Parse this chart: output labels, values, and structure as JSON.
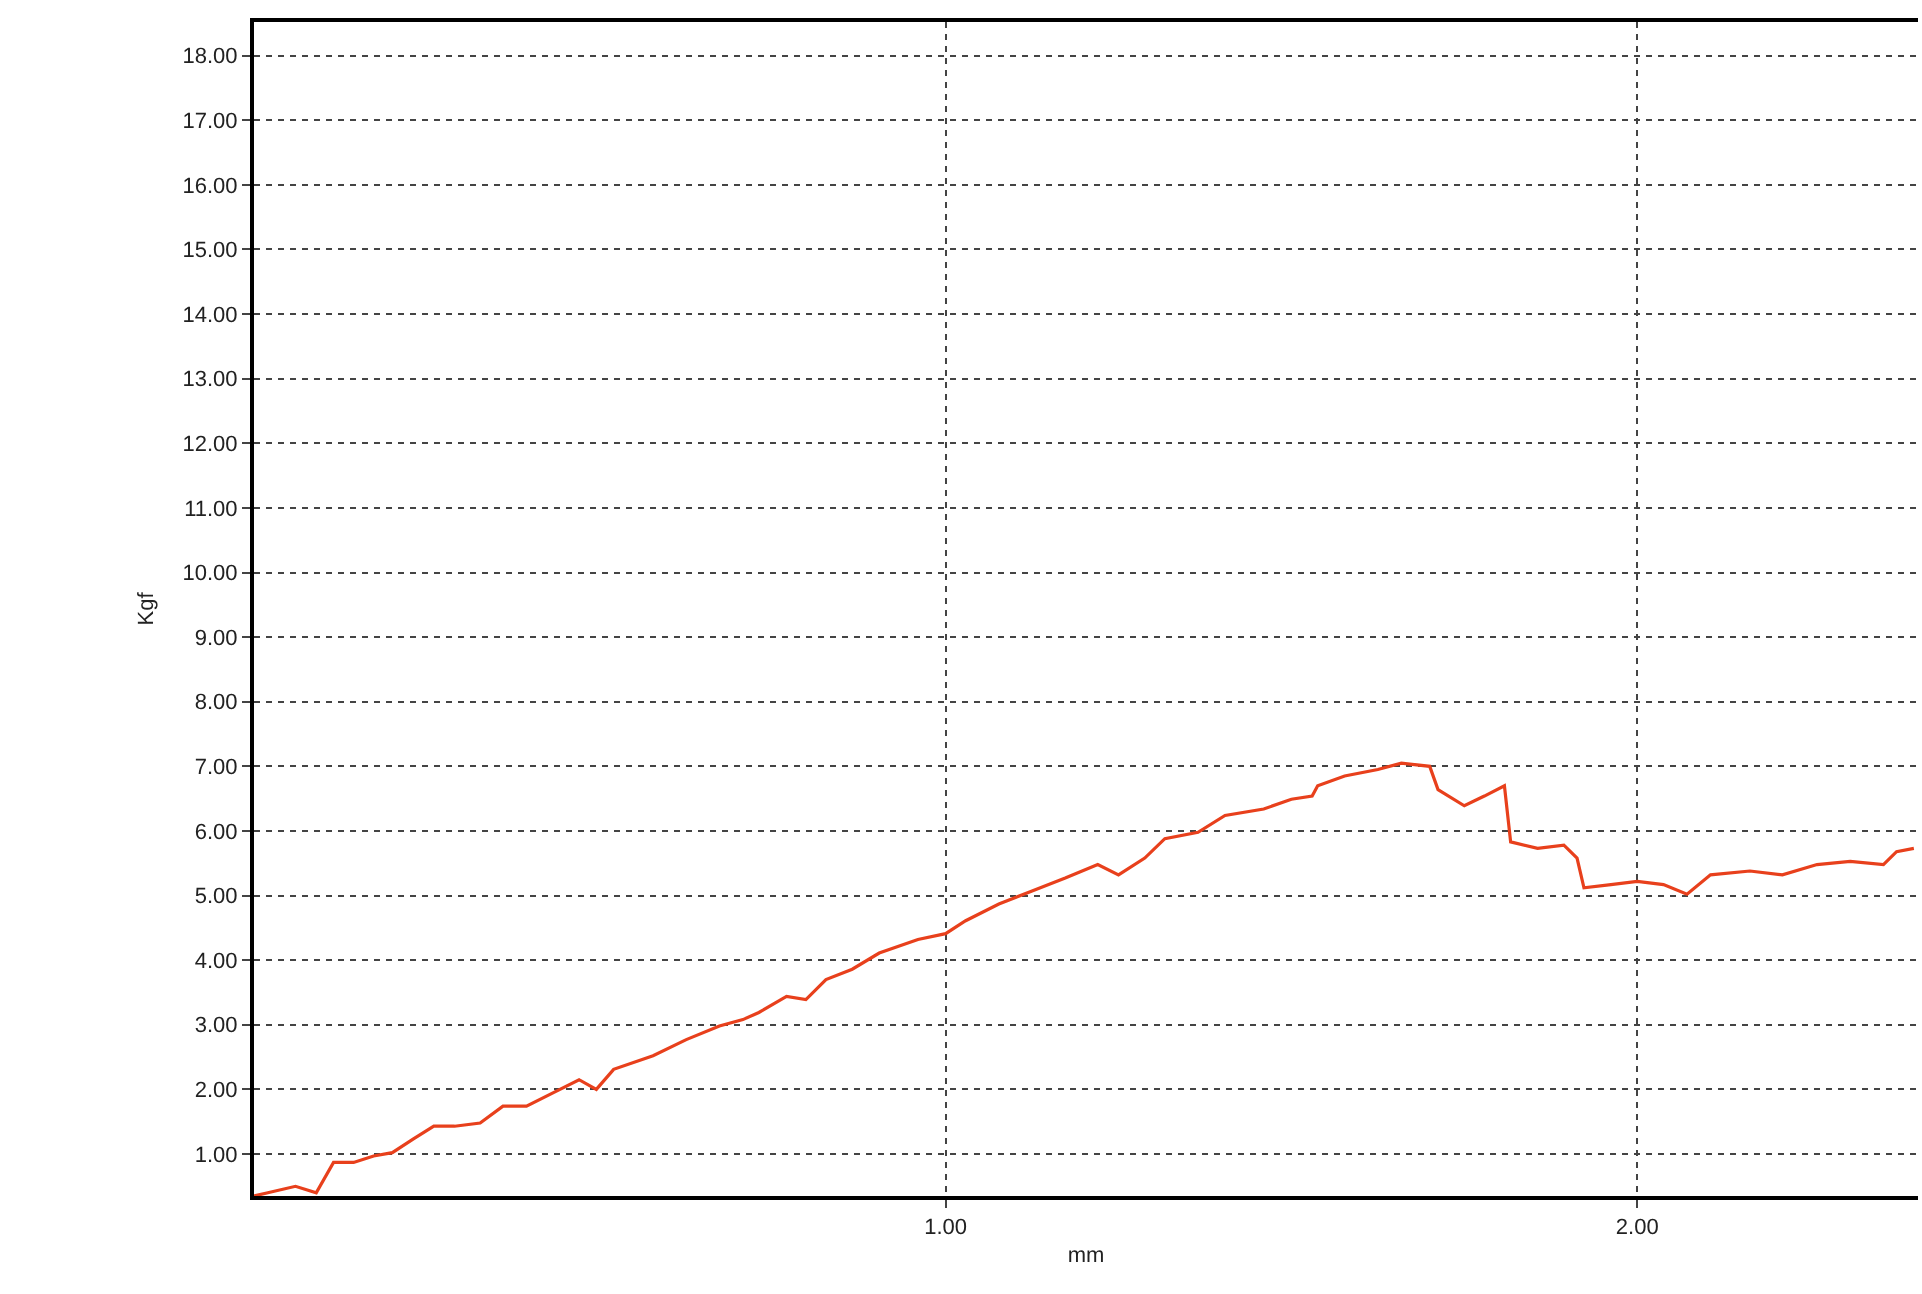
{
  "chart_data": {
    "type": "line",
    "xlabel": "mm",
    "ylabel": "Kgf",
    "x": [
      0,
      0.02,
      0.06,
      0.09,
      0.115,
      0.144,
      0.173,
      0.2,
      0.23,
      0.26,
      0.29,
      0.327,
      0.36,
      0.394,
      0.433,
      0.47,
      0.495,
      0.52,
      0.577,
      0.625,
      0.673,
      0.707,
      0.73,
      0.77,
      0.798,
      0.827,
      0.865,
      0.904,
      0.96,
      1.0,
      1.029,
      1.077,
      1.125,
      1.173,
      1.22,
      1.25,
      1.288,
      1.317,
      1.365,
      1.404,
      1.46,
      1.5,
      1.53,
      1.538,
      1.577,
      1.625,
      1.659,
      1.7,
      1.712,
      1.75,
      1.779,
      1.808,
      1.817,
      1.856,
      1.894,
      1.913,
      1.923,
      1.962,
      2.0,
      2.038,
      2.072,
      2.106,
      2.163,
      2.21,
      2.26,
      2.308,
      2.356,
      2.375,
      2.4
    ],
    "series": [
      {
        "color": "#e8401c",
        "values": [
          0.35,
          0.4,
          0.5,
          0.4,
          0.87,
          0.87,
          0.97,
          1.02,
          1.23,
          1.43,
          1.43,
          1.48,
          1.74,
          1.74,
          1.95,
          2.15,
          2.0,
          2.31,
          2.52,
          2.77,
          2.98,
          3.08,
          3.19,
          3.44,
          3.39,
          3.7,
          3.86,
          4.11,
          4.32,
          4.41,
          4.61,
          4.87,
          5.07,
          5.27,
          5.48,
          5.32,
          5.58,
          5.88,
          5.98,
          6.24,
          6.34,
          6.49,
          6.54,
          6.7,
          6.85,
          6.95,
          7.05,
          7.0,
          6.64,
          6.39,
          6.54,
          6.7,
          5.83,
          5.73,
          5.78,
          5.58,
          5.12,
          5.17,
          5.22,
          5.17,
          5.02,
          5.32,
          5.38,
          5.32,
          5.48,
          5.53,
          5.48,
          5.68,
          5.73
        ]
      }
    ],
    "xlim": [
      0,
      2.406
    ],
    "ylim": [
      0.35,
      18.52
    ],
    "xticks": [
      {
        "value": 1,
        "label": "1.00"
      },
      {
        "value": 2,
        "label": "2.00"
      }
    ],
    "yticks": [
      {
        "value": 1,
        "label": "1.00"
      },
      {
        "value": 2,
        "label": "2.00"
      },
      {
        "value": 3,
        "label": "3.00"
      },
      {
        "value": 4,
        "label": "4.00"
      },
      {
        "value": 5,
        "label": "5.00"
      },
      {
        "value": 6,
        "label": "6.00"
      },
      {
        "value": 7,
        "label": "7.00"
      },
      {
        "value": 8,
        "label": "8.00"
      },
      {
        "value": 9,
        "label": "9.00"
      },
      {
        "value": 10,
        "label": "10.00"
      },
      {
        "value": 11,
        "label": "11.00"
      },
      {
        "value": 12,
        "label": "12.00"
      },
      {
        "value": 13,
        "label": "13.00"
      },
      {
        "value": 14,
        "label": "14.00"
      },
      {
        "value": 15,
        "label": "15.00"
      },
      {
        "value": 16,
        "label": "16.00"
      },
      {
        "value": 17,
        "label": "17.00"
      },
      {
        "value": 18,
        "label": "18.00"
      }
    ],
    "grid": true,
    "line_style": "solid"
  }
}
